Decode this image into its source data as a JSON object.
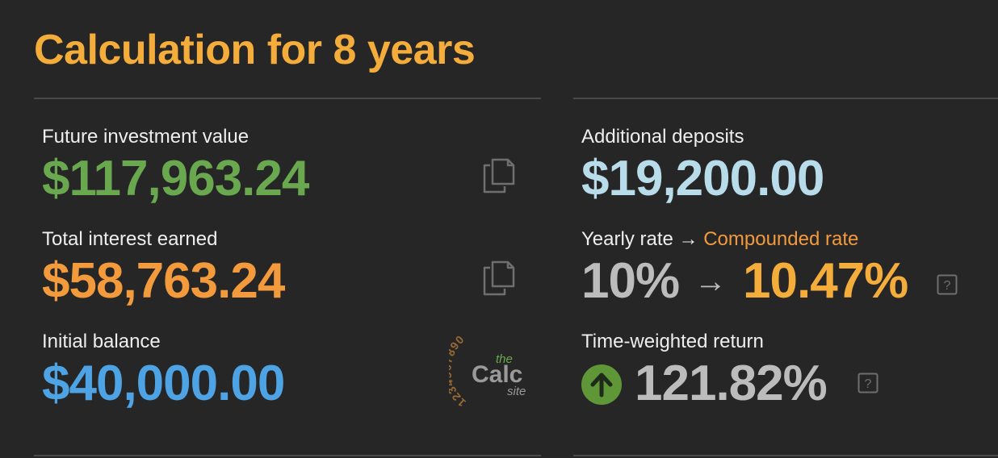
{
  "title": "Calculation for 8 years",
  "left": {
    "future_value": {
      "label": "Future investment value",
      "value": "$117,963.24"
    },
    "total_interest": {
      "label": "Total interest earned",
      "value": "$58,763.24"
    },
    "initial_balance": {
      "label": "Initial balance",
      "value": "$40,000.00"
    }
  },
  "right": {
    "additional_deposits": {
      "label": "Additional deposits",
      "value": "$19,200.00"
    },
    "rate": {
      "label_yearly": "Yearly rate",
      "label_arrow": "→",
      "label_compounded": "Compounded rate",
      "yearly": "10%",
      "arrow": "→",
      "compounded": "10.47%"
    },
    "twr": {
      "label": "Time-weighted return",
      "value": "121.82%"
    }
  },
  "logo": {
    "digits": "1234567890",
    "the": "the",
    "calc": "Calc",
    "site": "site"
  },
  "icons": {
    "copy": "copy-icon",
    "help": "help-icon",
    "up": "arrow-up-circle-icon"
  },
  "colors": {
    "background": "#262626",
    "title": "#f4ac3b",
    "future_value": "#6aa84f",
    "total_interest": "#f39a3c",
    "initial_balance": "#4ea3e4",
    "additional_deposits": "#b9dcea",
    "yearly_rate": "#bcbcbc",
    "compounded_rate": "#f4ac3b",
    "twr_value": "#bcbcbc",
    "twr_icon": "#5f9638"
  }
}
